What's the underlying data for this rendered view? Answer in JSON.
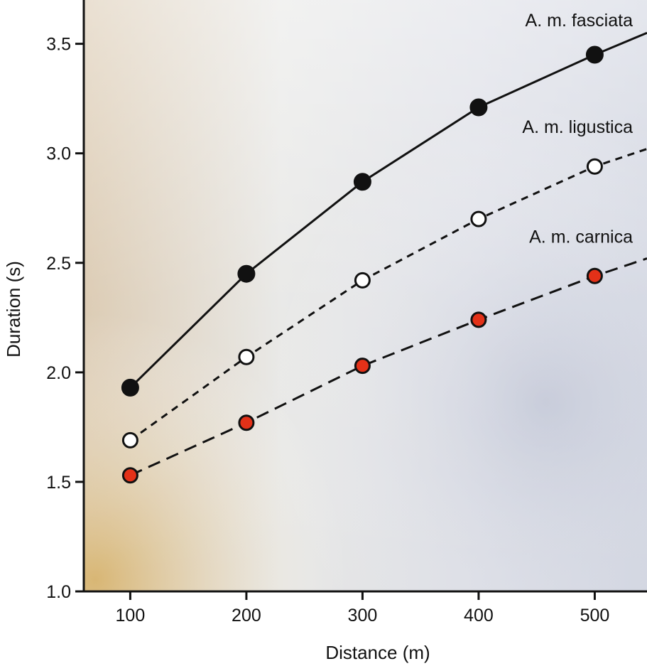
{
  "chart_data": {
    "type": "line",
    "title": "",
    "xlabel": "Distance (m)",
    "ylabel": "Duration (s)",
    "x": [
      100,
      200,
      300,
      400,
      500
    ],
    "xlim": [
      60,
      545
    ],
    "ylim": [
      1.0,
      3.7
    ],
    "xticks": [
      100,
      200,
      300,
      400,
      500
    ],
    "yticks": [
      1.0,
      1.5,
      2.0,
      2.5,
      3.0,
      3.5
    ],
    "xtick_labels": [
      "100",
      "200",
      "300",
      "400",
      "500"
    ],
    "ytick_labels": [
      "1.0",
      "1.5",
      "2.0",
      "2.5",
      "3.0",
      "3.5"
    ],
    "grid": false,
    "legend": "inline labels at right end of each line",
    "series": [
      {
        "name": "A. m. fasciata",
        "values": [
          1.93,
          2.45,
          2.87,
          3.21,
          3.45
        ],
        "line_style": "solid",
        "marker": "filled-circle",
        "marker_color": "#111111",
        "line_color": "#111111",
        "extends_to": [
          545,
          3.55
        ]
      },
      {
        "name": "A. m. ligustica",
        "values": [
          1.69,
          2.07,
          2.42,
          2.7,
          2.94
        ],
        "line_style": "short-dash",
        "marker": "open-circle",
        "marker_color": "#ffffff",
        "line_color": "#111111",
        "extends_to": [
          545,
          3.02
        ]
      },
      {
        "name": "A. m. carnica",
        "values": [
          1.53,
          1.77,
          2.03,
          2.24,
          2.44
        ],
        "line_style": "long-dash",
        "marker": "filled-circle",
        "marker_color": "#e33118",
        "line_color": "#111111",
        "extends_to": [
          545,
          2.52
        ]
      }
    ]
  },
  "colors": {
    "paper": "#ffffff",
    "ink": "#111111",
    "carnica_fill": "#e33118",
    "bg_warm": "#d8b46d",
    "bg_cool": "#cfd3df"
  }
}
